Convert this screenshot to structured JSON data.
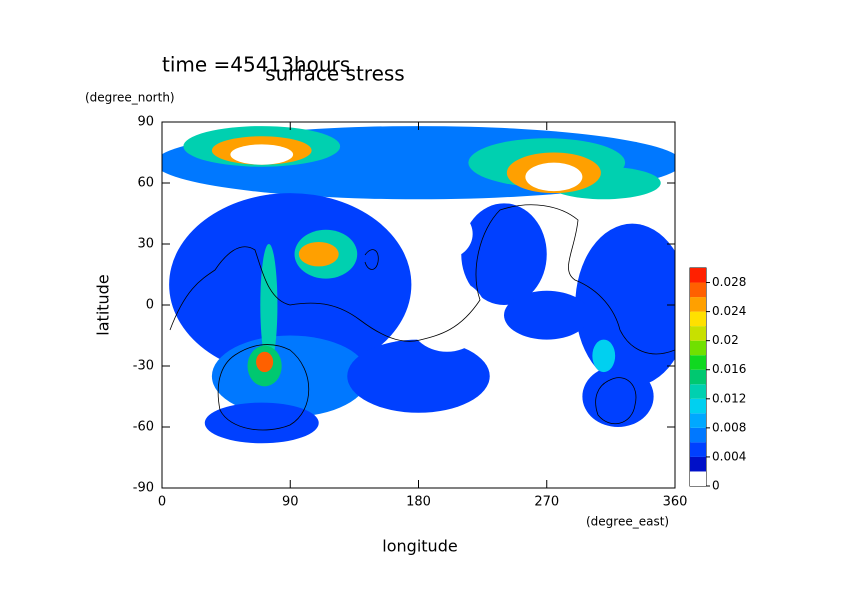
{
  "chart_data": {
    "type": "contour",
    "title": "surface stress",
    "subtitle": "time =45413hours",
    "x_label": "longitude",
    "x_unit": "(degree_east)",
    "y_label": "latitude",
    "y_unit": "(degree_north)",
    "xlim": [
      0,
      360
    ],
    "xticks": [
      0,
      90,
      180,
      270,
      360
    ],
    "ylim": [
      -90,
      90
    ],
    "yticks": [
      -90,
      -60,
      -30,
      0,
      30,
      60,
      90
    ],
    "levels": [
      0,
      0.002,
      0.004,
      0.006,
      0.008,
      0.01,
      0.012,
      0.014,
      0.016,
      0.018,
      0.02,
      0.022,
      0.024,
      0.026,
      0.028,
      0.03
    ],
    "colors": [
      "#ffffff",
      "#0010c8",
      "#0040ff",
      "#0078ff",
      "#00a8ff",
      "#00d0f0",
      "#00d0b0",
      "#00c870",
      "#10d820",
      "#70e000",
      "#c8e000",
      "#ffe000",
      "#ffa000",
      "#ff6000",
      "#ff2000"
    ],
    "over_color": "#ffffff",
    "colorbar_ticks": [
      0,
      0.004,
      0.008,
      0.012,
      0.016,
      0.02,
      0.024,
      0.028
    ],
    "regions": [
      {
        "lon": 180,
        "lat": 70,
        "rx": 185,
        "ry": 18,
        "level": 0.006
      },
      {
        "lon": 90,
        "lat": 10,
        "rx": 85,
        "ry": 45,
        "level": 0.004
      },
      {
        "lon": 330,
        "lat": 0,
        "rx": 40,
        "ry": 40,
        "level": 0.004
      },
      {
        "lon": 240,
        "lat": 25,
        "rx": 30,
        "ry": 25,
        "level": 0.004
      },
      {
        "lon": 90,
        "lat": -35,
        "rx": 55,
        "ry": 20,
        "level": 0.006
      },
      {
        "lon": 180,
        "lat": -35,
        "rx": 50,
        "ry": 18,
        "level": 0.004
      },
      {
        "lon": 70,
        "lat": -58,
        "rx": 40,
        "ry": 10,
        "level": 0.004
      },
      {
        "lon": 320,
        "lat": -45,
        "rx": 25,
        "ry": 15,
        "level": 0.004
      },
      {
        "lon": 270,
        "lat": -5,
        "rx": 30,
        "ry": 12,
        "level": 0.004
      },
      {
        "lon": 200,
        "lat": -5,
        "rx": 28,
        "ry": 18,
        "level": 0
      },
      {
        "lon": 200,
        "lat": 35,
        "rx": 18,
        "ry": 12,
        "level": 0
      },
      {
        "lon": 70,
        "lat": 78,
        "rx": 55,
        "ry": 10,
        "level": 0.012
      },
      {
        "lon": 270,
        "lat": 70,
        "rx": 55,
        "ry": 12,
        "level": 0.012
      },
      {
        "lon": 310,
        "lat": 60,
        "rx": 40,
        "ry": 8,
        "level": 0.012
      },
      {
        "lon": 70,
        "lat": 76,
        "rx": 35,
        "ry": 7,
        "level": 0.024
      },
      {
        "lon": 275,
        "lat": 65,
        "rx": 33,
        "ry": 10,
        "level": 0.024
      },
      {
        "lon": 70,
        "lat": 74,
        "rx": 22,
        "ry": 5,
        "level": 0.03
      },
      {
        "lon": 275,
        "lat": 63,
        "rx": 20,
        "ry": 7,
        "level": 0.03
      },
      {
        "lon": 115,
        "lat": 25,
        "rx": 22,
        "ry": 12,
        "level": 0.012
      },
      {
        "lon": 110,
        "lat": 25,
        "rx": 14,
        "ry": 6,
        "level": 0.024
      },
      {
        "lon": 75,
        "lat": 0,
        "rx": 6,
        "ry": 30,
        "level": 0.012
      },
      {
        "lon": 72,
        "lat": -30,
        "rx": 12,
        "ry": 10,
        "level": 0.014
      },
      {
        "lon": 72,
        "lat": -28,
        "rx": 6,
        "ry": 5,
        "level": 0.026
      },
      {
        "lon": 310,
        "lat": -25,
        "rx": 8,
        "ry": 8,
        "level": 0.01
      }
    ]
  }
}
